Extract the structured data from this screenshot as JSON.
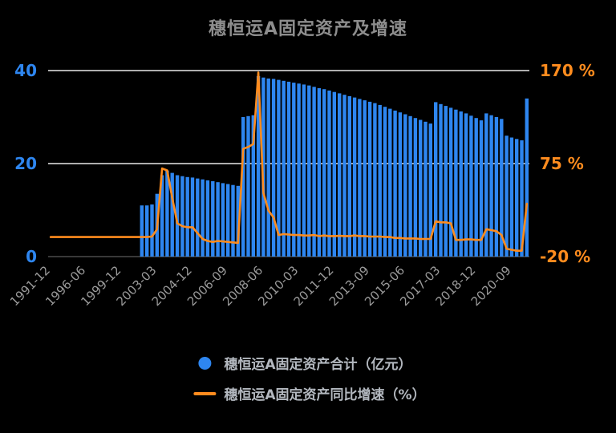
{
  "chart": {
    "title": "穗恒运A固定资产及增速",
    "legend": [
      "穗恒运A固定资产合计（亿元）",
      "穗恒运A固定资产同比增速（%）"
    ]
  },
  "chart_data": {
    "type": "bar+line",
    "title": "穗恒运A固定资产及增速",
    "background": "#000000",
    "grid_color": "#e9e9e9",
    "n_points": 95,
    "x_labels": [
      "1991-12",
      "1996-06",
      "1999-12",
      "2003-03",
      "2004-12",
      "2006-09",
      "2008-06",
      "2010-03",
      "2011-12",
      "2013-09",
      "2015-06",
      "2017-03",
      "2018-12",
      "2020-09"
    ],
    "label_indices": [
      0,
      7,
      14,
      21,
      28,
      35,
      42,
      49,
      56,
      63,
      70,
      77,
      84,
      91
    ],
    "x_label_color": "#9a9a9a",
    "left_axis": {
      "ticks": [
        0,
        20,
        40
      ],
      "labels": [
        "0",
        "20",
        "40"
      ],
      "range": [
        0,
        40
      ],
      "color": "#2e86f0"
    },
    "right_axis": {
      "ticks": [
        -20,
        75,
        170
      ],
      "labels": [
        "-20 %",
        "75 %",
        "170 %"
      ],
      "range": [
        -20,
        170
      ],
      "color": "#ff8c1e"
    },
    "series": [
      {
        "name": "穗恒运A固定资产合计（亿元）",
        "type": "bar",
        "axis": "left",
        "color": "#2e86f0",
        "values": [
          null,
          null,
          null,
          null,
          null,
          null,
          null,
          null,
          null,
          null,
          null,
          null,
          null,
          null,
          null,
          null,
          null,
          null,
          11,
          11,
          11.2,
          13.5,
          17.5,
          18.5,
          18,
          17.5,
          17.3,
          17.1,
          17,
          16.8,
          16.6,
          16.4,
          16.2,
          16,
          15.8,
          15.6,
          15.4,
          15.2,
          30,
          30.2,
          30.4,
          38.8,
          38.5,
          38.3,
          38.2,
          38,
          37.8,
          37.6,
          37.4,
          37.2,
          37,
          36.8,
          36.5,
          36.2,
          36,
          35.7,
          35.4,
          35.1,
          34.8,
          34.5,
          34.2,
          33.9,
          33.6,
          33.3,
          33,
          32.6,
          32.2,
          31.8,
          31.4,
          31,
          30.6,
          30.2,
          29.8,
          29.4,
          29,
          28.6,
          33.2,
          32.8,
          32.4,
          32,
          31.6,
          31.2,
          30.8,
          30.3,
          29.8,
          29.3,
          30.8,
          30.4,
          30,
          29.6,
          26,
          25.6,
          25.3,
          25,
          34
        ]
      },
      {
        "name": "穗恒运A固定资产同比增速（%）",
        "type": "line",
        "axis": "right",
        "color": "#ff8c1e",
        "values": [
          0,
          0,
          0,
          0,
          0,
          0,
          0,
          0,
          0,
          0,
          0,
          0,
          0,
          0,
          0,
          0,
          0,
          0,
          0,
          0,
          0.5,
          8,
          70,
          68,
          40,
          14,
          11,
          10,
          10,
          4,
          -2,
          -4,
          -5,
          -4,
          -4.5,
          -5,
          -5.5,
          -6,
          90,
          92,
          95,
          168,
          45,
          27,
          20,
          2,
          3,
          2.5,
          2,
          2,
          1.5,
          1.5,
          2,
          1,
          1.5,
          1,
          1,
          1.2,
          1,
          1,
          1.5,
          1,
          1,
          0.5,
          0.5,
          0.5,
          0,
          0,
          -1,
          -1,
          -1.5,
          -1.5,
          -1.5,
          -2,
          -2,
          -2,
          16,
          15,
          15,
          14,
          -3,
          -3,
          -2.5,
          -2.5,
          -3,
          -3,
          8,
          7,
          6,
          2,
          -12,
          -13,
          -14,
          -14,
          34
        ]
      }
    ]
  }
}
